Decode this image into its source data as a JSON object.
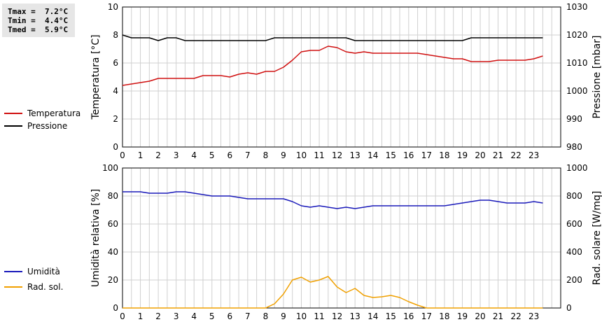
{
  "stats": {
    "tmax": "Tmax =  7.2°C",
    "tmin": "Tmin =  4.4°C",
    "tmed": "Tmed =  5.9°C"
  },
  "colors": {
    "temperatura": "#d01010",
    "pressione": "#000000",
    "umidita": "#1a1aba",
    "radsol": "#f0a000",
    "grid": "#d0d0d0"
  },
  "chart_data": [
    {
      "type": "line",
      "x_ticks": [
        "0",
        "1",
        "2",
        "3",
        "4",
        "5",
        "6",
        "7",
        "8",
        "9",
        "10",
        "11",
        "12",
        "13",
        "14",
        "15",
        "16",
        "17",
        "18",
        "19",
        "20",
        "21",
        "22",
        "23"
      ],
      "xlim": [
        0,
        24.5
      ],
      "ylabel": "Temperatura [°C]",
      "ylim": [
        0,
        10
      ],
      "y_ticks": [
        "0",
        "2",
        "4",
        "6",
        "8",
        "10"
      ],
      "y2label": "Pressione [mbar]",
      "y2lim": [
        980,
        1030
      ],
      "y2_ticks": [
        "980",
        "990",
        "1000",
        "1010",
        "1020",
        "1030"
      ],
      "grid": true,
      "series": [
        {
          "name": "Temperatura",
          "axis": "left",
          "x": [
            0,
            0.5,
            1,
            1.5,
            2,
            2.5,
            3,
            3.5,
            4,
            4.5,
            5,
            5.5,
            6,
            6.5,
            7,
            7.5,
            8,
            8.5,
            9,
            9.5,
            10,
            10.5,
            11,
            11.5,
            12,
            12.5,
            13,
            13.5,
            14,
            14.5,
            15,
            15.5,
            16,
            16.5,
            17,
            17.5,
            18,
            18.5,
            19,
            19.5,
            20,
            20.5,
            21,
            21.5,
            22,
            22.5,
            23,
            23.5
          ],
          "values": [
            4.4,
            4.5,
            4.6,
            4.7,
            4.9,
            4.9,
            4.9,
            4.9,
            4.9,
            5.1,
            5.1,
            5.1,
            5.0,
            5.2,
            5.3,
            5.2,
            5.4,
            5.4,
            5.7,
            6.2,
            6.8,
            6.9,
            6.9,
            7.2,
            7.1,
            6.8,
            6.7,
            6.8,
            6.7,
            6.7,
            6.7,
            6.7,
            6.7,
            6.7,
            6.6,
            6.5,
            6.4,
            6.3,
            6.3,
            6.1,
            6.1,
            6.1,
            6.2,
            6.2,
            6.2,
            6.2,
            6.3,
            6.5
          ]
        },
        {
          "name": "Pressione",
          "axis": "right",
          "x": [
            0,
            0.5,
            1,
            1.5,
            2,
            2.5,
            3,
            3.5,
            4,
            4.5,
            5,
            5.5,
            6,
            6.5,
            7,
            7.5,
            8,
            8.5,
            9,
            9.5,
            10,
            10.5,
            11,
            11.5,
            12,
            12.5,
            13,
            13.5,
            14,
            14.5,
            15,
            15.5,
            16,
            16.5,
            17,
            17.5,
            18,
            18.5,
            19,
            19.5,
            20,
            20.5,
            21,
            21.5,
            22,
            22.5,
            23,
            23.5
          ],
          "values": [
            1020,
            1019,
            1019,
            1019,
            1018,
            1019,
            1019,
            1018,
            1018,
            1018,
            1018,
            1018,
            1018,
            1018,
            1018,
            1018,
            1018,
            1019,
            1019,
            1019,
            1019,
            1019,
            1019,
            1019,
            1019,
            1019,
            1018,
            1018,
            1018,
            1018,
            1018,
            1018,
            1018,
            1018,
            1018,
            1018,
            1018,
            1018,
            1018,
            1019,
            1019,
            1019,
            1019,
            1019,
            1019,
            1019,
            1019,
            1019
          ]
        }
      ]
    },
    {
      "type": "line",
      "x_ticks": [
        "0",
        "1",
        "2",
        "3",
        "4",
        "5",
        "6",
        "7",
        "8",
        "9",
        "10",
        "11",
        "12",
        "13",
        "14",
        "15",
        "16",
        "17",
        "18",
        "19",
        "20",
        "21",
        "22",
        "23"
      ],
      "xlim": [
        0,
        24.5
      ],
      "ylabel": "Umidità relativa [%]",
      "ylim": [
        0,
        100
      ],
      "y_ticks": [
        "0",
        "20",
        "40",
        "60",
        "80",
        "100"
      ],
      "y2label": "Rad. solare [W/mq]",
      "y2lim": [
        0,
        1000
      ],
      "y2_ticks": [
        "0",
        "200",
        "400",
        "600",
        "800",
        "1000"
      ],
      "grid": true,
      "series": [
        {
          "name": "Umidità",
          "axis": "left",
          "x": [
            0,
            0.5,
            1,
            1.5,
            2,
            2.5,
            3,
            3.5,
            4,
            4.5,
            5,
            5.5,
            6,
            6.5,
            7,
            7.5,
            8,
            8.5,
            9,
            9.5,
            10,
            10.5,
            11,
            11.5,
            12,
            12.5,
            13,
            13.5,
            14,
            14.5,
            15,
            15.5,
            16,
            16.5,
            17,
            17.5,
            18,
            18.5,
            19,
            19.5,
            20,
            20.5,
            21,
            21.5,
            22,
            22.5,
            23,
            23.5
          ],
          "values": [
            83,
            83,
            83,
            82,
            82,
            82,
            83,
            83,
            82,
            81,
            80,
            80,
            80,
            79,
            78,
            78,
            78,
            78,
            78,
            76,
            73,
            72,
            73,
            72,
            71,
            72,
            71,
            72,
            73,
            73,
            73,
            73,
            73,
            73,
            73,
            73,
            73,
            74,
            75,
            76,
            77,
            77,
            76,
            75,
            75,
            75,
            76,
            75
          ]
        },
        {
          "name": "Rad. sol.",
          "axis": "right",
          "x": [
            0,
            0.5,
            1,
            1.5,
            2,
            2.5,
            3,
            3.5,
            4,
            4.5,
            5,
            5.5,
            6,
            6.5,
            7,
            7.5,
            8,
            8.5,
            9,
            9.5,
            10,
            10.5,
            11,
            11.5,
            12,
            12.5,
            13,
            13.5,
            14,
            14.5,
            15,
            15.5,
            16,
            16.5,
            17,
            17.5,
            18,
            18.5,
            19,
            19.5,
            20,
            20.5,
            21,
            21.5,
            22,
            22.5,
            23,
            23.5
          ],
          "values": [
            0,
            0,
            0,
            0,
            0,
            0,
            0,
            0,
            0,
            0,
            0,
            0,
            0,
            0,
            0,
            0,
            0,
            30,
            100,
            200,
            220,
            185,
            200,
            225,
            150,
            110,
            140,
            90,
            75,
            80,
            90,
            75,
            45,
            20,
            0,
            0,
            0,
            0,
            0,
            0,
            0,
            0,
            0,
            0,
            0,
            0,
            0,
            0
          ]
        }
      ]
    }
  ]
}
